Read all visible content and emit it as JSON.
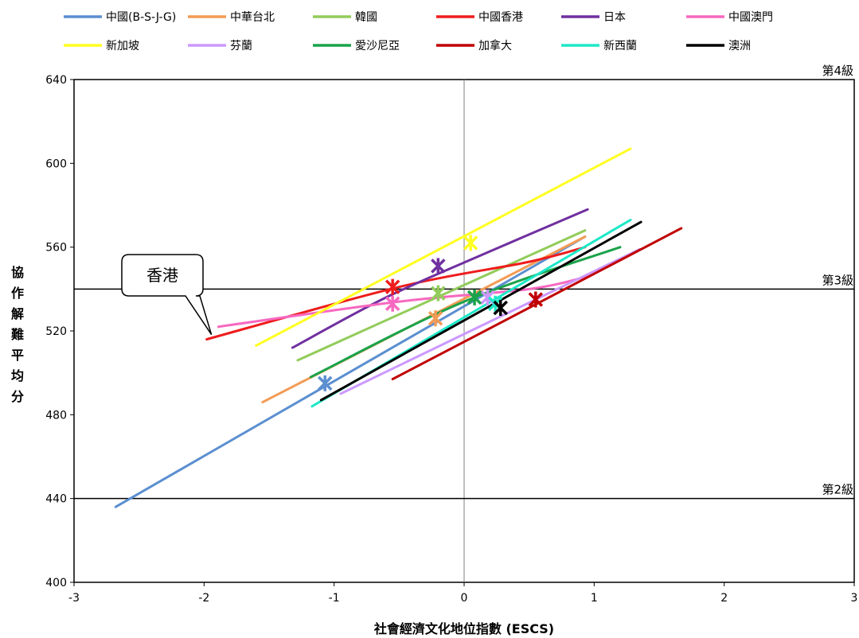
{
  "chart_data": {
    "type": "line",
    "xlabel": "社會經濟文化地位指數 (ESCS)",
    "ylabel": "協作解難平均分",
    "xlim": [
      -3,
      3
    ],
    "ylim": [
      400,
      640
    ],
    "x_ticks": [
      "-3",
      "-2",
      "-1",
      "0",
      "1",
      "2",
      "3"
    ],
    "y_ticks": [
      "400",
      "440",
      "480",
      "520",
      "560",
      "600",
      "640"
    ],
    "grid": false,
    "legend_position": "top",
    "reference_lines": [
      {
        "y": 640,
        "label": "第4級"
      },
      {
        "y": 540,
        "label": "第3級"
      },
      {
        "y": 440,
        "label": "第2級"
      }
    ],
    "vertical_reference": {
      "x": 0
    },
    "annotation": {
      "text": "香港",
      "target": [
        -1.98,
        516
      ]
    },
    "series": [
      {
        "name": "中國(B-S-J-G)",
        "color": "#5b8fd0",
        "points": [
          [
            -2.68,
            436
          ],
          [
            0.93,
            565
          ]
        ],
        "mean": [
          -1.07,
          495
        ]
      },
      {
        "name": "中華台北",
        "color": "#f39b55",
        "points": [
          [
            -1.55,
            486
          ],
          [
            0.93,
            565
          ]
        ],
        "mean": [
          -0.22,
          526
        ]
      },
      {
        "name": "韓國",
        "color": "#92cc5a",
        "points": [
          [
            -1.28,
            506
          ],
          [
            0.93,
            568
          ]
        ],
        "mean": [
          -0.2,
          538
        ]
      },
      {
        "name": "中國香港",
        "color": "#ee1c1c",
        "points": [
          [
            -1.98,
            516
          ],
          [
            -0.5,
            541
          ],
          [
            0.5,
            553
          ],
          [
            0.93,
            560
          ]
        ],
        "mean": [
          -0.55,
          541
        ]
      },
      {
        "name": "日本",
        "color": "#7030a0",
        "points": [
          [
            -1.32,
            512
          ],
          [
            -0.6,
            536
          ],
          [
            0.2,
            558
          ],
          [
            0.95,
            578
          ]
        ],
        "mean": [
          -0.2,
          551
        ]
      },
      {
        "name": "中國澳門",
        "color": "#f768c0",
        "points": [
          [
            -1.89,
            522
          ],
          [
            -0.5,
            534
          ],
          [
            0.5,
            540
          ],
          [
            0.95,
            546
          ]
        ],
        "mean": [
          -0.55,
          533
        ]
      },
      {
        "name": "新加坡",
        "color": "#ffff22",
        "points": [
          [
            -1.6,
            513
          ],
          [
            1.28,
            607
          ]
        ],
        "mean": [
          0.05,
          562
        ]
      },
      {
        "name": "芬蘭",
        "color": "#cc99ff",
        "points": [
          [
            -0.95,
            490
          ],
          [
            1.35,
            559
          ]
        ],
        "mean": [
          0.18,
          536
        ]
      },
      {
        "name": "愛沙尼亞",
        "color": "#1aa34a",
        "points": [
          [
            -1.18,
            498
          ],
          [
            0.0,
            534
          ],
          [
            1.2,
            560
          ]
        ],
        "mean": [
          0.08,
          536
        ]
      },
      {
        "name": "加拿大",
        "color": "#c00000",
        "points": [
          [
            -0.55,
            497
          ],
          [
            1.67,
            569
          ]
        ],
        "mean": [
          0.55,
          535
        ]
      },
      {
        "name": "新西蘭",
        "color": "#1ee8c8",
        "points": [
          [
            -1.17,
            484
          ],
          [
            1.28,
            573
          ]
        ],
        "mean": [
          0.24,
          533
        ]
      },
      {
        "name": "澳洲",
        "color": "#000000",
        "points": [
          [
            -1.1,
            487
          ],
          [
            1.36,
            572
          ]
        ],
        "mean": [
          0.28,
          531
        ]
      }
    ]
  }
}
